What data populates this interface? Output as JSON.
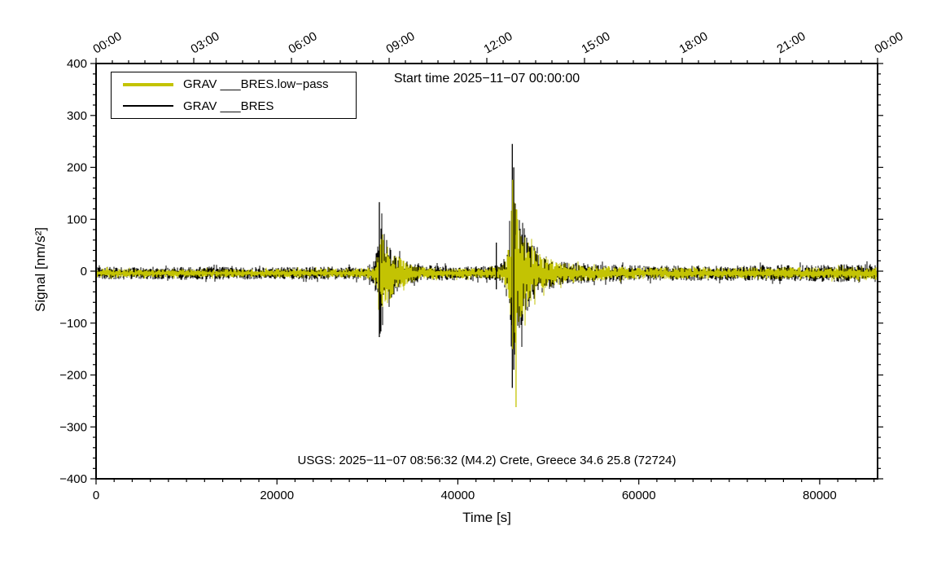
{
  "chart_data": {
    "type": "line",
    "title": "Start time 2025−11−07 00:00:00",
    "xlabel": "Time [s]",
    "ylabel": "Signal [nm/s²]",
    "annotation": "USGS: 2025−11−07 08:56:32 (M4.2) Crete, Greece 34.6 25.8 (72724)",
    "xlim": [
      0,
      86400
    ],
    "ylim": [
      -400,
      400
    ],
    "grid": false,
    "legend_position": "top-left",
    "x_ticks": {
      "values": [
        0,
        20000,
        40000,
        60000,
        80000
      ],
      "labels": [
        "0",
        "20000",
        "40000",
        "60000",
        "80000"
      ],
      "minor_step": 2000
    },
    "y_ticks": {
      "values": [
        -400,
        -300,
        -200,
        -100,
        0,
        100,
        200,
        300,
        400
      ],
      "labels": [
        "−400",
        "−300",
        "−200",
        "−100",
        "0",
        "100",
        "200",
        "300",
        "400"
      ],
      "minor_step": 20
    },
    "top_axis": {
      "major_step_s": 10800,
      "minor_step_s": 1800,
      "labels": [
        "00:00",
        "03:00",
        "06:00",
        "09:00",
        "12:00",
        "15:00",
        "18:00",
        "21:00",
        "00:00"
      ]
    },
    "legend": [
      {
        "label": "GRAV ___BRES.low−pass",
        "color": "#c3c303",
        "line_width": 4
      },
      {
        "label": "GRAV ___BRES",
        "color": "#000000",
        "line_width": 2.5
      }
    ],
    "baseline_offset": -4,
    "noise_seed": 42,
    "series": [
      {
        "name": "GRAV ___BRES",
        "color": "#000000",
        "envelope": [
          [
            0,
            13
          ],
          [
            4000,
            12
          ],
          [
            8000,
            12
          ],
          [
            12000,
            13
          ],
          [
            16000,
            12
          ],
          [
            20000,
            12
          ],
          [
            24000,
            13
          ],
          [
            28000,
            13
          ],
          [
            30000,
            14
          ],
          [
            30800,
            25
          ],
          [
            31100,
            70
          ],
          [
            31300,
            130
          ],
          [
            31600,
            112
          ],
          [
            32000,
            85
          ],
          [
            32500,
            62
          ],
          [
            33000,
            45
          ],
          [
            33800,
            28
          ],
          [
            34800,
            20
          ],
          [
            36000,
            16
          ],
          [
            38000,
            15
          ],
          [
            40000,
            14
          ],
          [
            42000,
            14
          ],
          [
            43500,
            14
          ],
          [
            44500,
            16
          ],
          [
            45200,
            30
          ],
          [
            45600,
            80
          ],
          [
            45850,
            150
          ],
          [
            46050,
            180
          ],
          [
            46400,
            158
          ],
          [
            46800,
            128
          ],
          [
            47200,
            100
          ],
          [
            47600,
            80
          ],
          [
            48200,
            58
          ],
          [
            49000,
            42
          ],
          [
            50000,
            32
          ],
          [
            51500,
            25
          ],
          [
            53000,
            21
          ],
          [
            55000,
            18
          ],
          [
            58000,
            16
          ],
          [
            62000,
            15
          ],
          [
            66000,
            15
          ],
          [
            70000,
            15
          ],
          [
            74000,
            16
          ],
          [
            78000,
            16
          ],
          [
            82000,
            17
          ],
          [
            86400,
            18
          ]
        ],
        "spikes": [
          {
            "t": 31320,
            "hi": 133,
            "lo": -127
          },
          {
            "t": 44250,
            "hi": 55,
            "lo": -35
          },
          {
            "t": 46020,
            "hi": 245,
            "lo": -225
          },
          {
            "t": 46180,
            "hi": 200,
            "lo": -190
          }
        ]
      },
      {
        "name": "GRAV ___BRES.low-pass",
        "color": "#c3c303",
        "envelope": [
          [
            0,
            9
          ],
          [
            6000,
            8
          ],
          [
            12000,
            8
          ],
          [
            18000,
            8
          ],
          [
            24000,
            9
          ],
          [
            29000,
            9
          ],
          [
            30800,
            14
          ],
          [
            31100,
            45
          ],
          [
            31300,
            92
          ],
          [
            31700,
            78
          ],
          [
            32200,
            62
          ],
          [
            32800,
            46
          ],
          [
            33500,
            32
          ],
          [
            34500,
            20
          ],
          [
            35500,
            14
          ],
          [
            37000,
            11
          ],
          [
            40000,
            10
          ],
          [
            43500,
            10
          ],
          [
            44800,
            14
          ],
          [
            45300,
            25
          ],
          [
            45650,
            60
          ],
          [
            45850,
            115
          ],
          [
            46050,
            152
          ],
          [
            46350,
            140
          ],
          [
            46700,
            118
          ],
          [
            47100,
            92
          ],
          [
            47600,
            72
          ],
          [
            48200,
            52
          ],
          [
            49000,
            38
          ],
          [
            50000,
            29
          ],
          [
            51500,
            22
          ],
          [
            53500,
            17
          ],
          [
            56000,
            14
          ],
          [
            60000,
            12
          ],
          [
            65000,
            11
          ],
          [
            70000,
            11
          ],
          [
            75000,
            12
          ],
          [
            80000,
            12
          ],
          [
            86400,
            13
          ]
        ],
        "spikes": [
          {
            "t": 46060,
            "hi": 176,
            "lo": -150
          },
          {
            "t": 46430,
            "hi": 70,
            "lo": -262
          }
        ]
      }
    ]
  }
}
